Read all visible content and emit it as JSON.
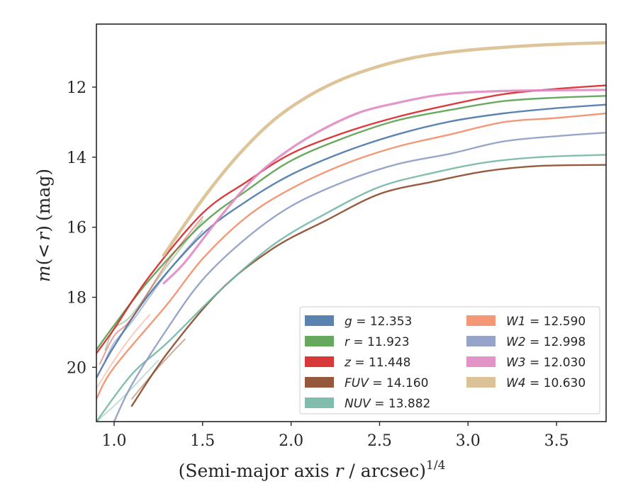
{
  "chart_data": {
    "type": "line",
    "xlabel": "(Semi-major axis r / arcsec)",
    "xlabel_parts": {
      "prefix": "(Semi-major axis ",
      "var": "r",
      "middle": " / arcsec)",
      "sup": "1/4"
    },
    "ylabel": "m(< r) (mag)",
    "ylabel_parts": {
      "m": "m",
      "open": "(",
      "lt": "<",
      "r": "r",
      "close": ")",
      "unit": "(mag)"
    },
    "xlim": [
      0.9,
      3.78
    ],
    "ylim": [
      21.55,
      10.2
    ],
    "y_inverted": true,
    "xticks": [
      1.0,
      1.5,
      2.0,
      2.5,
      3.0,
      3.5
    ],
    "xtick_labels": [
      "1.0",
      "1.5",
      "2.0",
      "2.5",
      "3.0",
      "3.5"
    ],
    "yticks": [
      12,
      14,
      16,
      18,
      20
    ],
    "ytick_labels": [
      "12",
      "14",
      "16",
      "18",
      "20"
    ],
    "grid": false,
    "legend_position": "lower-right",
    "series": [
      {
        "name": "g",
        "legend_value": "12.353",
        "color": "#4C78A8",
        "x": [
          0.9,
          1.0,
          1.2,
          1.5,
          1.75,
          2.0,
          2.3,
          2.6,
          2.9,
          3.2,
          3.5,
          3.78
        ],
        "y": [
          20.3,
          19.4,
          17.9,
          16.2,
          15.25,
          14.5,
          13.85,
          13.35,
          12.98,
          12.75,
          12.6,
          12.5
        ],
        "bands": [
          {
            "x": [
              0.95,
              1.0,
              1.1,
              1.3,
              1.5
            ],
            "y": [
              19.8,
              19.3,
              18.7,
              17.3,
              16.1
            ]
          }
        ]
      },
      {
        "name": "r",
        "legend_value": "11.923",
        "color": "#59A14F",
        "x": [
          0.9,
          1.0,
          1.2,
          1.5,
          1.75,
          2.0,
          2.3,
          2.6,
          2.9,
          3.2,
          3.5,
          3.78
        ],
        "y": [
          19.5,
          18.8,
          17.5,
          15.9,
          14.95,
          14.1,
          13.45,
          12.95,
          12.65,
          12.4,
          12.3,
          12.25
        ],
        "bands": [
          {
            "x": [
              0.95,
              1.0,
              1.1,
              1.3,
              1.5
            ],
            "y": [
              19.5,
              18.9,
              18.5,
              17.1,
              15.8
            ]
          }
        ]
      },
      {
        "name": "z",
        "legend_value": "11.448",
        "color": "#D62728",
        "x": [
          0.9,
          1.0,
          1.2,
          1.5,
          1.75,
          2.0,
          2.3,
          2.6,
          2.9,
          3.2,
          3.5,
          3.78
        ],
        "y": [
          19.6,
          18.9,
          17.4,
          15.6,
          14.7,
          13.9,
          13.3,
          12.85,
          12.5,
          12.2,
          12.05,
          11.95
        ],
        "bands": [
          {
            "x": [
              0.92,
              1.0,
              1.1,
              1.3,
              1.5
            ],
            "y": [
              19.9,
              19.1,
              18.6,
              17.0,
              15.7
            ]
          }
        ]
      },
      {
        "name": "FUV",
        "legend_value": "14.160",
        "color": "#8C4A2A",
        "x": [
          1.1,
          1.3,
          1.6,
          1.9,
          2.2,
          2.5,
          2.8,
          3.1,
          3.4,
          3.78
        ],
        "y": [
          21.1,
          19.6,
          17.8,
          16.6,
          15.8,
          15.05,
          14.7,
          14.4,
          14.25,
          14.22
        ],
        "bands": [
          {
            "x": [
              1.1,
              1.25,
              1.4
            ],
            "y": [
              20.9,
              20.0,
              19.2
            ]
          }
        ]
      },
      {
        "name": "NUV",
        "legend_value": "13.882",
        "color": "#76B7A6",
        "x": [
          0.9,
          1.1,
          1.3,
          1.6,
          1.9,
          2.2,
          2.5,
          2.8,
          3.1,
          3.4,
          3.78
        ],
        "y": [
          21.55,
          20.2,
          19.3,
          17.8,
          16.5,
          15.6,
          14.85,
          14.45,
          14.15,
          14.0,
          13.93
        ],
        "bands": [
          {
            "x": [
              0.9,
              1.0,
              1.1,
              1.25
            ],
            "y": [
              21.55,
              21.1,
              20.6,
              19.8
            ]
          }
        ]
      },
      {
        "name": "W1",
        "legend_value": "12.590",
        "color": "#F28E6B",
        "x": [
          0.9,
          1.0,
          1.3,
          1.5,
          1.75,
          2.0,
          2.3,
          2.6,
          2.9,
          3.2,
          3.5,
          3.78
        ],
        "y": [
          20.9,
          20.0,
          18.2,
          16.9,
          15.7,
          14.9,
          14.2,
          13.7,
          13.35,
          13.0,
          12.88,
          12.75
        ],
        "bands": [
          {
            "x": [
              0.9,
              1.0,
              1.1,
              1.2
            ],
            "y": [
              20.6,
              19.8,
              19.1,
              18.5
            ]
          }
        ]
      },
      {
        "name": "W2",
        "legend_value": "12.998",
        "color": "#8E9CC4",
        "x": [
          1.0,
          1.1,
          1.3,
          1.5,
          1.75,
          2.0,
          2.3,
          2.6,
          2.9,
          3.2,
          3.5,
          3.78
        ],
        "y": [
          21.55,
          20.5,
          18.9,
          17.5,
          16.3,
          15.4,
          14.7,
          14.2,
          13.9,
          13.55,
          13.4,
          13.3
        ],
        "bands": []
      },
      {
        "name": "W3",
        "legend_value": "12.030",
        "color": "#E08BC2",
        "x": [
          1.28,
          1.4,
          1.6,
          1.8,
          2.0,
          2.2,
          2.4,
          2.6,
          2.8,
          3.0,
          3.3,
          3.78
        ],
        "y": [
          17.6,
          17.0,
          15.7,
          14.55,
          13.75,
          13.15,
          12.7,
          12.45,
          12.25,
          12.15,
          12.1,
          12.08
        ],
        "bands": []
      },
      {
        "name": "W4",
        "legend_value": "10.630",
        "color": "#D9BE8E",
        "x": [
          1.28,
          1.5,
          1.7,
          1.9,
          2.1,
          2.3,
          2.5,
          2.7,
          2.9,
          3.1,
          3.4,
          3.78
        ],
        "y": [
          16.8,
          15.2,
          13.95,
          12.95,
          12.25,
          11.75,
          11.4,
          11.15,
          11.0,
          10.9,
          10.8,
          10.73
        ],
        "bands": []
      }
    ]
  }
}
